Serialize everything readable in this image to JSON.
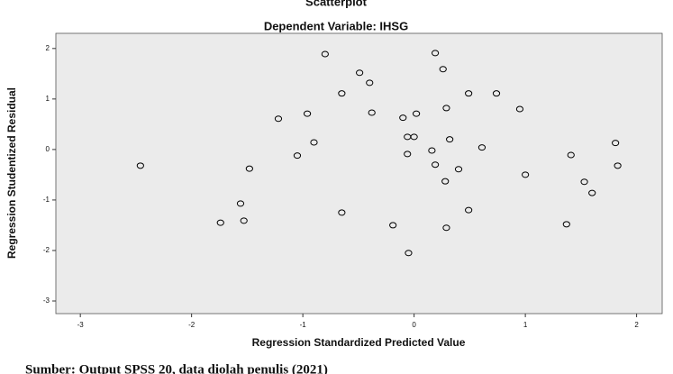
{
  "chart_data": {
    "type": "scatter",
    "title": "Scatterplot",
    "subtitle": "Dependent Variable: IHSG",
    "x_label": "Regression Standardized Predicted Value",
    "y_label": "Regression Studentized Residual",
    "source": "Sumber: Output SPSS 20, data diolah penulis (2021)",
    "x": [
      -2.46,
      -1.74,
      -1.56,
      -1.53,
      -1.48,
      -1.22,
      -1.05,
      -0.96,
      -0.9,
      -0.8,
      -0.65,
      -0.65,
      -0.49,
      -0.4,
      -0.38,
      -0.19,
      -0.1,
      -0.06,
      -0.06,
      -0.05,
      0.0,
      0.02,
      0.16,
      0.19,
      0.19,
      0.26,
      0.28,
      0.29,
      0.29,
      0.32,
      0.4,
      0.49,
      0.49,
      0.61,
      0.74,
      1.0,
      0.95,
      1.37,
      1.41,
      1.53,
      1.6,
      1.81,
      1.83
    ],
    "values": [
      -0.32,
      -1.45,
      -1.07,
      -1.41,
      -0.38,
      0.61,
      -0.12,
      0.71,
      0.14,
      1.89,
      1.11,
      -1.25,
      1.52,
      1.32,
      0.73,
      -1.5,
      0.63,
      0.25,
      -0.09,
      -2.05,
      0.25,
      0.71,
      -0.02,
      1.91,
      -0.3,
      1.59,
      -0.63,
      0.82,
      -1.55,
      0.2,
      -0.39,
      1.11,
      -1.2,
      0.04,
      1.11,
      -0.5,
      0.8,
      -1.48,
      -0.11,
      -0.64,
      -0.86,
      0.13,
      -0.32
    ],
    "color": "#000000",
    "plot_background": "#ebebeb",
    "xlim": [
      -3.22,
      2.23
    ],
    "xticks": [
      -3,
      -2,
      -1,
      0,
      1,
      2
    ],
    "ylim": [
      -3.25,
      2.3
    ],
    "yticks": [
      -3,
      -2,
      -1,
      0,
      1,
      2
    ],
    "grid": false
  }
}
